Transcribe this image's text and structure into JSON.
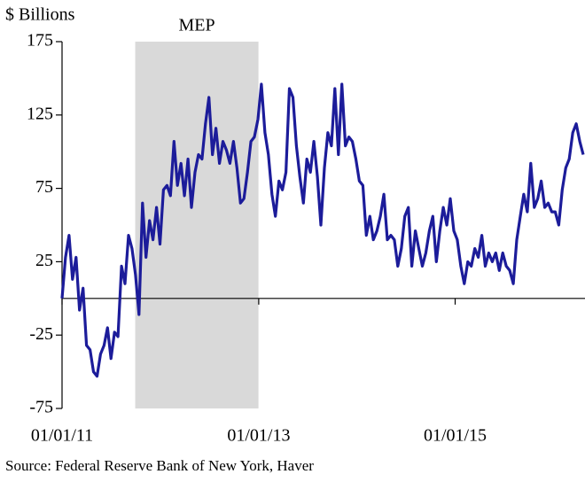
{
  "chart_data": {
    "type": "line",
    "y_label": "$ Billions",
    "source": "Source: Federal Reserve Bank of New York, Haver",
    "shade": {
      "label": "MEP",
      "start": "2011-09-30",
      "end": "2012-12-31",
      "color": "#d9d9d9"
    },
    "x": [
      "2011-01-01",
      "2011-01-14",
      "2011-01-27",
      "2011-02-09",
      "2011-02-22",
      "2011-03-07",
      "2011-03-20",
      "2011-04-02",
      "2011-04-15",
      "2011-04-28",
      "2011-05-11",
      "2011-05-24",
      "2011-06-06",
      "2011-06-19",
      "2011-07-02",
      "2011-07-15",
      "2011-07-28",
      "2011-08-10",
      "2011-08-23",
      "2011-09-05",
      "2011-09-18",
      "2011-10-01",
      "2011-10-14",
      "2011-10-27",
      "2011-11-09",
      "2011-11-22",
      "2011-12-05",
      "2011-12-18",
      "2011-12-31",
      "2012-01-13",
      "2012-01-26",
      "2012-02-08",
      "2012-02-21",
      "2012-03-05",
      "2012-03-18",
      "2012-03-31",
      "2012-04-13",
      "2012-04-26",
      "2012-05-09",
      "2012-05-22",
      "2012-06-04",
      "2012-06-17",
      "2012-06-30",
      "2012-07-13",
      "2012-07-26",
      "2012-08-08",
      "2012-08-21",
      "2012-09-03",
      "2012-09-16",
      "2012-09-29",
      "2012-10-12",
      "2012-10-25",
      "2012-11-07",
      "2012-11-20",
      "2012-12-03",
      "2012-12-16",
      "2012-12-29",
      "2013-01-11",
      "2013-01-24",
      "2013-02-06",
      "2013-02-19",
      "2013-03-04",
      "2013-03-17",
      "2013-03-30",
      "2013-04-12",
      "2013-04-25",
      "2013-05-08",
      "2013-05-21",
      "2013-06-03",
      "2013-06-16",
      "2013-06-29",
      "2013-07-12",
      "2013-07-25",
      "2013-08-07",
      "2013-08-20",
      "2013-09-02",
      "2013-09-15",
      "2013-09-28",
      "2013-10-11",
      "2013-10-24",
      "2013-11-06",
      "2013-11-19",
      "2013-12-02",
      "2013-12-15",
      "2013-12-28",
      "2014-01-10",
      "2014-01-23",
      "2014-02-05",
      "2014-02-18",
      "2014-03-03",
      "2014-03-16",
      "2014-03-29",
      "2014-04-11",
      "2014-04-24",
      "2014-05-07",
      "2014-05-20",
      "2014-06-02",
      "2014-06-15",
      "2014-06-28",
      "2014-07-11",
      "2014-07-24",
      "2014-08-06",
      "2014-08-19",
      "2014-09-01",
      "2014-09-14",
      "2014-09-27",
      "2014-10-10",
      "2014-10-23",
      "2014-11-05",
      "2014-11-18",
      "2014-12-01",
      "2014-12-14",
      "2014-12-27",
      "2015-01-09",
      "2015-01-22",
      "2015-02-04",
      "2015-02-17",
      "2015-03-02",
      "2015-03-15",
      "2015-03-28",
      "2015-04-10",
      "2015-04-23",
      "2015-05-06",
      "2015-05-19",
      "2015-06-01",
      "2015-06-14",
      "2015-06-27",
      "2015-07-10",
      "2015-07-23",
      "2015-08-05",
      "2015-08-18",
      "2015-08-31",
      "2015-09-13",
      "2015-09-26",
      "2015-10-09",
      "2015-10-22",
      "2015-11-04",
      "2015-11-17",
      "2015-11-30",
      "2015-12-13",
      "2015-12-26",
      "2016-01-08",
      "2016-01-21",
      "2016-02-03",
      "2016-02-16",
      "2016-02-29",
      "2016-03-13",
      "2016-03-26",
      "2016-04-08",
      "2016-04-21"
    ],
    "series": [
      {
        "name": "Line",
        "color": "#1c1c9a",
        "values": [
          0,
          28,
          43,
          13,
          28,
          -8,
          7,
          -32,
          -35,
          -50,
          -53,
          -38,
          -32,
          -20,
          -41,
          -23,
          -26,
          22,
          10,
          43,
          34,
          16,
          -11,
          65,
          28,
          53,
          40,
          62,
          37,
          74,
          77,
          70,
          107,
          77,
          92,
          70,
          95,
          62,
          86,
          98,
          95,
          119,
          137,
          98,
          116,
          92,
          107,
          101,
          92,
          107,
          89,
          65,
          68,
          86,
          107,
          110,
          122,
          146,
          113,
          98,
          71,
          56,
          80,
          74,
          86,
          143,
          137,
          104,
          83,
          65,
          95,
          86,
          107,
          83,
          50,
          89,
          113,
          104,
          143,
          98,
          146,
          104,
          110,
          107,
          95,
          80,
          77,
          43,
          56,
          40,
          46,
          56,
          71,
          40,
          43,
          40,
          22,
          34,
          56,
          62,
          22,
          46,
          34,
          22,
          31,
          46,
          56,
          25,
          46,
          62,
          50,
          68,
          46,
          40,
          22,
          10,
          25,
          22,
          34,
          28,
          43,
          22,
          31,
          25,
          31,
          19,
          31,
          22,
          19,
          10,
          40,
          56,
          71,
          59,
          92,
          62,
          68,
          80,
          62,
          65,
          59,
          59,
          50,
          74,
          89,
          95,
          113,
          119,
          107,
          98
        ]
      }
    ],
    "xlim": [
      "2011-01-01",
      "2016-04-21"
    ],
    "xticks": [
      {
        "value": "2011-01-01",
        "label": "01/01/11"
      },
      {
        "value": "2013-01-01",
        "label": "01/01/13"
      },
      {
        "value": "2015-01-01",
        "label": "01/01/15"
      }
    ],
    "ylim": [
      -75,
      175
    ],
    "yticks": [
      -75,
      -25,
      25,
      75,
      125,
      175
    ]
  }
}
